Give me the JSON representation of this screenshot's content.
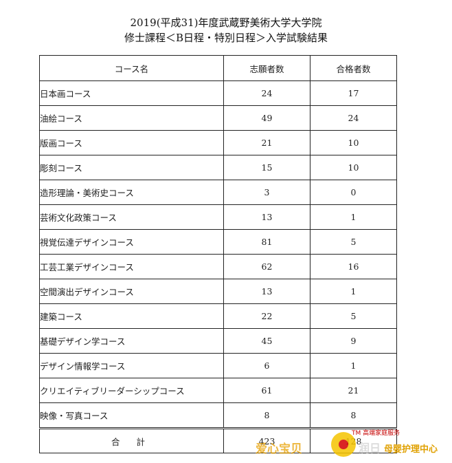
{
  "title": {
    "line1": "2019(平成31)年度武蔵野美術大学大学院",
    "line2": "修士課程＜B日程・特別日程＞入学試験結果"
  },
  "table": {
    "headers": [
      "コース名",
      "志願者数",
      "合格者数"
    ],
    "rows": [
      {
        "course": "日本画コース",
        "applicants": "24",
        "passed": "17"
      },
      {
        "course": "油絵コース",
        "applicants": "49",
        "passed": "24"
      },
      {
        "course": "版画コース",
        "applicants": "21",
        "passed": "10"
      },
      {
        "course": "彫刻コース",
        "applicants": "15",
        "passed": "10"
      },
      {
        "course": "造形理論・美術史コース",
        "applicants": "3",
        "passed": "0"
      },
      {
        "course": "芸術文化政策コース",
        "applicants": "13",
        "passed": "1"
      },
      {
        "course": "視覚伝達デザインコース",
        "applicants": "81",
        "passed": "5"
      },
      {
        "course": "工芸工業デザインコース",
        "applicants": "62",
        "passed": "16"
      },
      {
        "course": "空間演出デザインコース",
        "applicants": "13",
        "passed": "1"
      },
      {
        "course": "建築コース",
        "applicants": "22",
        "passed": "5"
      },
      {
        "course": "基礎デザイン学コース",
        "applicants": "45",
        "passed": "9"
      },
      {
        "course": "デザイン情報学コース",
        "applicants": "6",
        "passed": "1"
      },
      {
        "course": "クリエイティブリーダーシップコース",
        "applicants": "61",
        "passed": "21"
      },
      {
        "course": "映像・写真コース",
        "applicants": "8",
        "passed": "8"
      }
    ],
    "total": {
      "label": "合 計",
      "applicants": "423",
      "passed": "128"
    }
  },
  "watermark": {
    "tm_text": "TM 高端家庭服务",
    "left_text": "爱心宝贝",
    "mid_text": "润日",
    "right_text": "母婴护理中心"
  }
}
